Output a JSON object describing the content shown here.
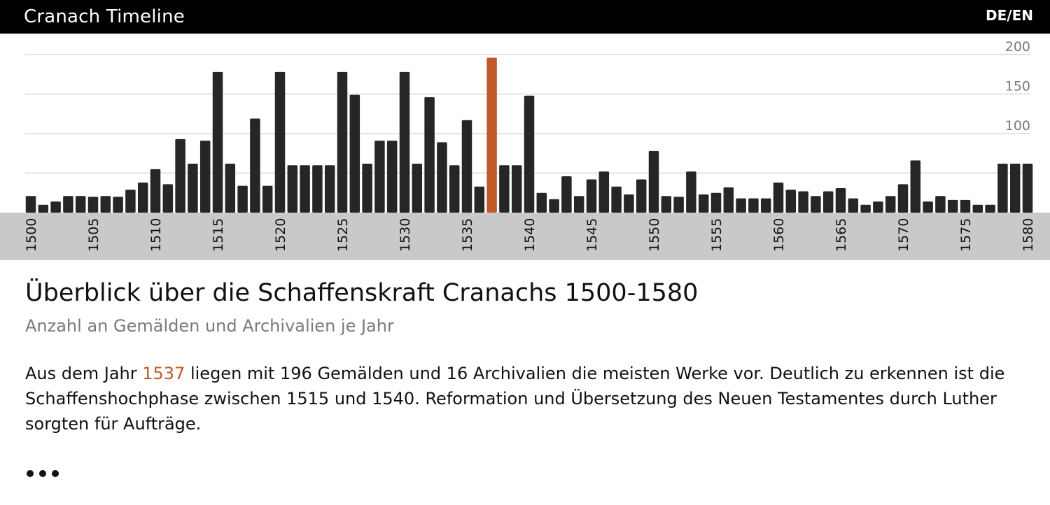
{
  "header": {
    "app_title": "Cranach Timeline",
    "lang_switch": "DE/EN"
  },
  "colors": {
    "bar": "#262626",
    "highlight": "#c05a28",
    "axis_band": "#c9c9c9",
    "grid": "#e3e3e3",
    "tick_text": "#7a7a7a"
  },
  "chart_data": {
    "type": "bar",
    "x": [
      1500,
      1501,
      1502,
      1503,
      1504,
      1505,
      1506,
      1507,
      1508,
      1509,
      1510,
      1511,
      1512,
      1513,
      1514,
      1515,
      1516,
      1517,
      1518,
      1519,
      1520,
      1521,
      1522,
      1523,
      1524,
      1525,
      1526,
      1527,
      1528,
      1529,
      1530,
      1531,
      1532,
      1533,
      1534,
      1535,
      1536,
      1537,
      1538,
      1539,
      1540,
      1541,
      1542,
      1543,
      1544,
      1545,
      1546,
      1547,
      1548,
      1549,
      1550,
      1551,
      1552,
      1553,
      1554,
      1555,
      1556,
      1557,
      1558,
      1559,
      1560,
      1561,
      1562,
      1563,
      1564,
      1565,
      1566,
      1567,
      1568,
      1569,
      1570,
      1571,
      1572,
      1573,
      1574,
      1575,
      1576,
      1577,
      1578,
      1579,
      1580
    ],
    "values": [
      21,
      10,
      14,
      21,
      21,
      20,
      21,
      20,
      29,
      38,
      55,
      36,
      93,
      62,
      91,
      178,
      62,
      34,
      119,
      34,
      178,
      60,
      60,
      60,
      60,
      178,
      149,
      62,
      91,
      91,
      178,
      62,
      146,
      89,
      60,
      117,
      33,
      196,
      60,
      60,
      148,
      25,
      17,
      46,
      21,
      42,
      52,
      33,
      23,
      42,
      78,
      21,
      20,
      52,
      23,
      25,
      32,
      18,
      18,
      18,
      38,
      29,
      27,
      21,
      27,
      31,
      18,
      10,
      14,
      21,
      36,
      66,
      14,
      21,
      16,
      16,
      10,
      10,
      62,
      62,
      62
    ],
    "highlight_x": 1537,
    "x_ticks": [
      1500,
      1505,
      1510,
      1515,
      1520,
      1525,
      1530,
      1535,
      1540,
      1545,
      1550,
      1555,
      1560,
      1565,
      1570,
      1575,
      1580
    ],
    "y_ticks": [
      100,
      150,
      200
    ],
    "ylim": [
      0,
      220
    ],
    "grid": true
  },
  "content": {
    "heading": "Überblick über die Schaffenskraft Cranachs 1500-1580",
    "subheading": "Anzahl an Gemälden und Archivalien je Jahr",
    "paragraph_before": "Aus dem Jahr ",
    "highlight_year": "1537",
    "paragraph_after": " liegen mit 196 Gemälden und 16 Archivalien die meisten Werke vor. Deutlich zu erkennen ist die Schaffenshochphase zwischen 1515 und 1540. Reformation und Übersetzung des Neuen Testamentes durch Luther sorgten für Aufträge."
  },
  "more_icon": "more-dots-icon"
}
